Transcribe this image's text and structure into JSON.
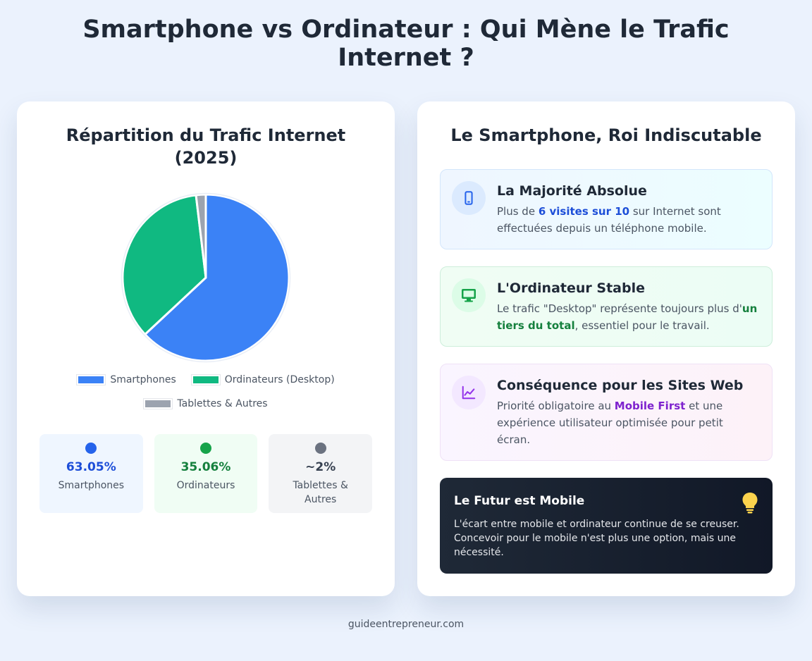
{
  "page": {
    "title": "Smartphone vs Ordinateur : Qui Mène le Trafic Internet ?",
    "footer": "guideentrepreneur.com"
  },
  "colors": {
    "smartphones": "#3b82f6",
    "desktop": "#10b981",
    "others": "#9ca3af"
  },
  "chart_data": {
    "type": "pie",
    "title": "Répartition du Trafic Internet (2025)",
    "categories": [
      "Smartphones",
      "Ordinateurs (Desktop)",
      "Tablettes & Autres"
    ],
    "values": [
      63.05,
      35.06,
      1.89
    ],
    "colors": [
      "#3b82f6",
      "#10b981",
      "#9ca3af"
    ],
    "legend_position": "bottom"
  },
  "stats": [
    {
      "value": "63.05%",
      "label": "Smartphones",
      "color": "#2563eb"
    },
    {
      "value": "35.06%",
      "label": "Ordinateurs",
      "color": "#16a34a"
    },
    {
      "value": "~2%",
      "label": "Tablettes & Autres",
      "color": "#6b7280"
    }
  ],
  "right": {
    "title": "Le Smartphone, Roi Indiscutable",
    "features": [
      {
        "icon": "smartphone-icon",
        "title": "La Majorité Absolue",
        "text_before": "Plus de ",
        "highlight": "6 visites sur 10",
        "text_after": " sur Internet sont effectuées depuis un téléphone mobile."
      },
      {
        "icon": "monitor-icon",
        "title": "L'Ordinateur Stable",
        "text_before": "Le trafic \"Desktop\" représente toujours plus d'",
        "highlight": "un tiers du total",
        "text_after": ", essentiel pour le travail."
      },
      {
        "icon": "trend-chart-icon",
        "title": "Conséquence pour les Sites Web",
        "text_before": "Priorité obligatoire au ",
        "highlight": "Mobile First",
        "text_after": " et une expérience utilisateur optimisée pour petit écran."
      }
    ],
    "future": {
      "icon": "lightbulb-icon",
      "title": "Le Futur est Mobile",
      "text": "L'écart entre mobile et ordinateur continue de se creuser. Concevoir pour le mobile n'est plus une option, mais une nécessité."
    }
  }
}
